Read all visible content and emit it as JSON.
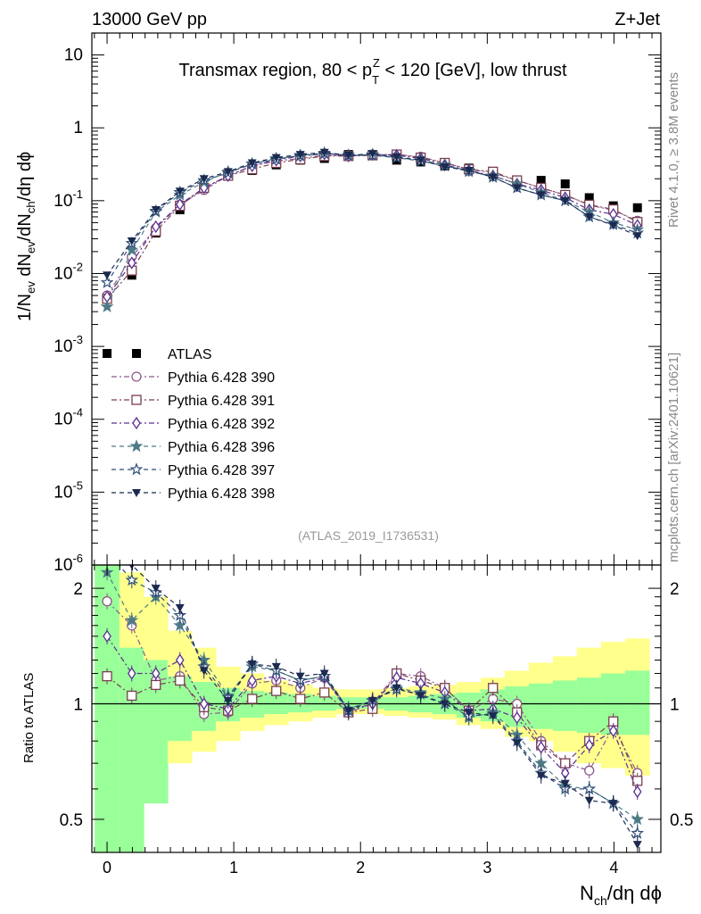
{
  "header": {
    "energy_label": "13000 GeV pp",
    "process_label": "Z+Jet",
    "rivet_label": "Rivet 4.1.0, ≥ 3.8M events",
    "mcplots_label": "mcplots.cern.ch [arXiv:2401.10621]",
    "analysis_id": "(ATLAS_2019_I1736531)"
  },
  "chart_data": [
    {
      "type": "scatter",
      "panel": "main",
      "title": "Transmax region, 80 < p_T^Z < 120 [GeV], low thrust",
      "ylabel": "1/N_ev dN_ev/dN_ch/dη dϕ",
      "xlabel": "N_ch/dη dϕ",
      "yscale": "log",
      "xlim": [
        -0.12,
        4.37
      ],
      "ylim": [
        1e-06,
        20
      ],
      "ytick_labels": [
        "10^-6",
        "10^-5",
        "10^-4",
        "10^-3",
        "10^-2",
        "10^-1",
        "1",
        "10"
      ],
      "xtick_labels": [
        "0",
        "1",
        "2",
        "3",
        "4"
      ],
      "x": [
        0.0,
        0.195,
        0.385,
        0.575,
        0.765,
        0.955,
        1.145,
        1.335,
        1.525,
        1.715,
        1.905,
        2.095,
        2.285,
        2.475,
        2.665,
        2.855,
        3.045,
        3.235,
        3.425,
        3.615,
        3.805,
        3.995,
        4.185
      ],
      "series": [
        {
          "name": "ATLAS",
          "marker": "square-filled",
          "color": "#000000",
          "values": [
            0.0008,
            0.0095,
            0.036,
            0.075,
            0.15,
            0.23,
            0.26,
            0.31,
            0.36,
            0.38,
            0.43,
            0.43,
            0.36,
            0.34,
            0.3,
            0.28,
            0.23,
            0.19,
            0.19,
            0.17,
            0.11,
            0.085,
            0.08
          ]
        },
        {
          "name": "Pythia 6.428 390",
          "marker": "circle-open",
          "color": "#8c5a8c",
          "values": [
            0.005,
            0.017,
            0.042,
            0.088,
            0.14,
            0.22,
            0.3,
            0.35,
            0.38,
            0.42,
            0.41,
            0.43,
            0.43,
            0.4,
            0.33,
            0.27,
            0.24,
            0.19,
            0.15,
            0.12,
            0.087,
            0.074,
            0.053
          ]
        },
        {
          "name": "Pythia 6.428 391",
          "marker": "square-open",
          "color": "#7a3f4f",
          "values": [
            0.0045,
            0.011,
            0.038,
            0.085,
            0.15,
            0.22,
            0.27,
            0.33,
            0.37,
            0.41,
            0.41,
            0.42,
            0.43,
            0.39,
            0.33,
            0.27,
            0.25,
            0.19,
            0.15,
            0.12,
            0.088,
            0.076,
            0.051
          ]
        },
        {
          "name": "Pythia 6.428 392",
          "marker": "diamond-open",
          "color": "#5b2e91",
          "values": [
            0.0048,
            0.014,
            0.044,
            0.089,
            0.15,
            0.22,
            0.3,
            0.36,
            0.41,
            0.44,
            0.41,
            0.43,
            0.42,
            0.38,
            0.31,
            0.26,
            0.22,
            0.17,
            0.14,
            0.11,
            0.075,
            0.065,
            0.046
          ]
        },
        {
          "name": "Pythia 6.428 396",
          "marker": "star-filled",
          "color": "#4e7a86",
          "values": [
            0.0035,
            0.021,
            0.07,
            0.12,
            0.18,
            0.25,
            0.32,
            0.38,
            0.41,
            0.44,
            0.42,
            0.43,
            0.39,
            0.36,
            0.31,
            0.25,
            0.22,
            0.17,
            0.13,
            0.1,
            0.07,
            0.05,
            0.04
          ]
        },
        {
          "name": "Pythia 6.428 397",
          "marker": "star-open",
          "color": "#2f4f78",
          "values": [
            0.0075,
            0.026,
            0.072,
            0.13,
            0.19,
            0.24,
            0.32,
            0.37,
            0.42,
            0.45,
            0.42,
            0.42,
            0.39,
            0.35,
            0.3,
            0.26,
            0.21,
            0.15,
            0.12,
            0.1,
            0.06,
            0.047,
            0.036
          ]
        },
        {
          "name": "Pythia 6.428 398",
          "marker": "triangle-down-filled",
          "color": "#1c2a50",
          "values": [
            0.0095,
            0.028,
            0.075,
            0.135,
            0.2,
            0.25,
            0.33,
            0.39,
            0.43,
            0.46,
            0.42,
            0.44,
            0.4,
            0.36,
            0.29,
            0.26,
            0.21,
            0.15,
            0.12,
            0.1,
            0.06,
            0.046,
            0.033
          ]
        }
      ]
    },
    {
      "type": "scatter",
      "panel": "ratio",
      "ylabel": "Ratio to ATLAS",
      "yscale": "log",
      "xlim": [
        -0.12,
        4.37
      ],
      "ylim": [
        0.41,
        2.3
      ],
      "ytick_labels": [
        "0.5",
        "1",
        "2"
      ],
      "reference_line": 1,
      "bands": {
        "green_lo": [
          0.15,
          0.35,
          0.55,
          0.8,
          0.85,
          0.9,
          0.92,
          0.94,
          0.95,
          0.96,
          0.97,
          0.97,
          0.96,
          0.95,
          0.94,
          0.92,
          0.9,
          0.87,
          0.86,
          0.85,
          0.84,
          0.83,
          0.83
        ],
        "green_hi": [
          2.5,
          1.4,
          1.3,
          1.18,
          1.14,
          1.1,
          1.08,
          1.07,
          1.06,
          1.05,
          1.04,
          1.04,
          1.04,
          1.05,
          1.06,
          1.07,
          1.09,
          1.11,
          1.13,
          1.15,
          1.17,
          1.2,
          1.22
        ],
        "yellow_lo": [
          0.15,
          0.35,
          0.64,
          0.7,
          0.75,
          0.8,
          0.85,
          0.88,
          0.9,
          0.92,
          0.94,
          0.94,
          0.93,
          0.92,
          0.91,
          0.88,
          0.86,
          0.82,
          0.8,
          0.75,
          0.7,
          0.68,
          0.65
        ],
        "yellow_hi": [
          2.5,
          2.2,
          1.9,
          1.55,
          1.4,
          1.25,
          1.2,
          1.15,
          1.12,
          1.1,
          1.09,
          1.09,
          1.1,
          1.11,
          1.12,
          1.14,
          1.17,
          1.22,
          1.28,
          1.33,
          1.4,
          1.45,
          1.48
        ]
      },
      "series": [
        {
          "name": "Pythia 6.428 390",
          "values": [
            1.85,
            1.6,
            1.15,
            1.18,
            0.94,
            0.95,
            1.13,
            1.15,
            1.1,
            1.17,
            0.95,
            1.0,
            1.2,
            1.18,
            1.1,
            0.96,
            1.03,
            1.0,
            0.8,
            0.7,
            0.67,
            0.87,
            0.66
          ]
        },
        {
          "name": "Pythia 6.428 391",
          "values": [
            1.18,
            1.05,
            1.12,
            1.15,
            0.98,
            0.96,
            1.03,
            1.08,
            1.03,
            1.07,
            0.95,
            0.97,
            1.2,
            1.15,
            1.1,
            0.96,
            1.1,
            0.95,
            0.78,
            0.7,
            0.8,
            0.9,
            0.63
          ]
        },
        {
          "name": "Pythia 6.428 392",
          "values": [
            1.5,
            1.2,
            1.2,
            1.3,
            1.0,
            0.97,
            1.15,
            1.18,
            1.13,
            1.17,
            0.96,
            1.0,
            1.17,
            1.13,
            1.07,
            0.96,
            0.97,
            0.92,
            0.77,
            0.66,
            0.78,
            0.85,
            0.59
          ]
        },
        {
          "name": "Pythia 6.428 396",
          "values": [
            2.2,
            1.65,
            1.9,
            1.6,
            1.3,
            1.05,
            1.25,
            1.22,
            1.15,
            1.18,
            0.97,
            1.02,
            1.1,
            1.07,
            1.03,
            0.92,
            0.95,
            0.83,
            0.7,
            0.61,
            0.6,
            0.55,
            0.5
          ]
        },
        {
          "name": "Pythia 6.428 397",
          "values": [
            2.5,
            2.1,
            1.95,
            1.7,
            1.25,
            1.04,
            1.27,
            1.22,
            1.15,
            1.18,
            0.96,
            1.02,
            1.09,
            1.06,
            1.0,
            0.93,
            0.94,
            0.8,
            0.66,
            0.6,
            0.6,
            0.55,
            0.46
          ]
        },
        {
          "name": "Pythia 6.428 398",
          "values": [
            2.5,
            2.3,
            2.0,
            1.78,
            1.22,
            1.02,
            1.27,
            1.25,
            1.18,
            1.2,
            0.96,
            1.02,
            1.1,
            1.05,
            1.0,
            0.95,
            0.93,
            0.79,
            0.65,
            0.62,
            0.56,
            0.55,
            0.43
          ]
        }
      ]
    }
  ]
}
